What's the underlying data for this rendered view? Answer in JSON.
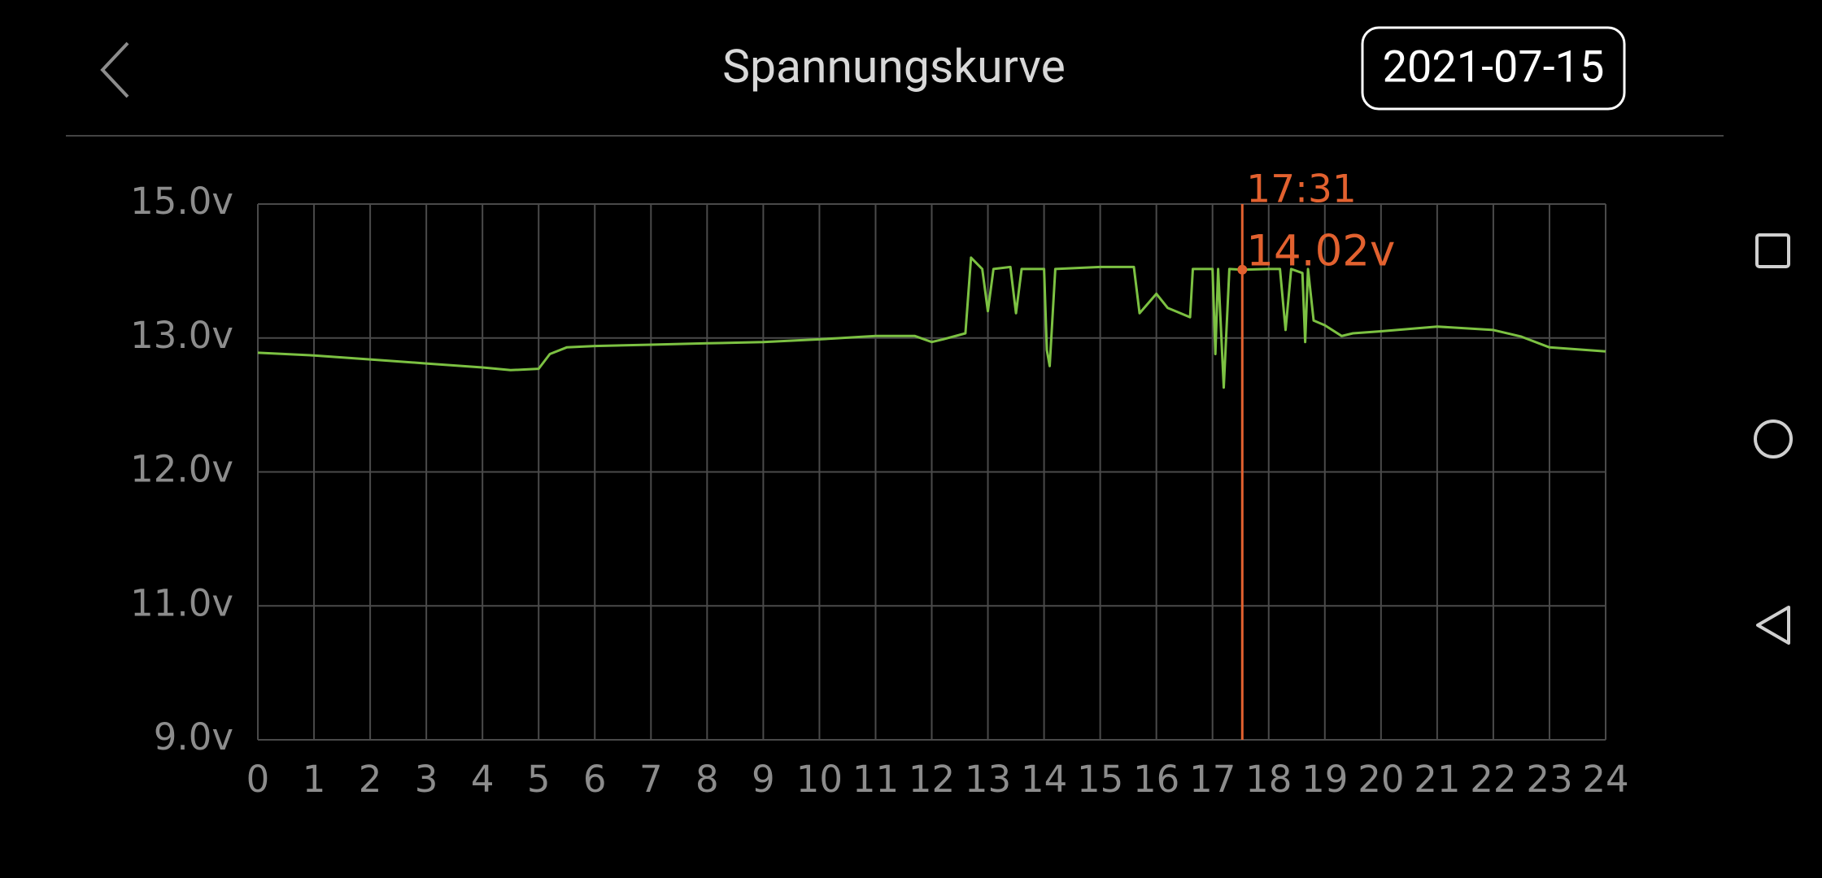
{
  "header": {
    "title": "Spannungskurve",
    "date": "2021-07-15"
  },
  "chart_data": {
    "type": "line",
    "x": [
      0,
      1,
      2,
      3,
      4,
      4.5,
      5,
      5.2,
      5.5,
      6,
      7,
      8,
      9,
      10,
      11,
      11.7,
      12,
      12.2,
      12.6,
      12.7,
      12.9,
      13,
      13.1,
      13.4,
      13.5,
      13.6,
      14,
      14.05,
      14.1,
      14.2,
      15,
      15.6,
      15.7,
      16,
      16.2,
      16.6,
      16.65,
      17,
      17.05,
      17.1,
      17.2,
      17.3,
      17.53,
      18,
      18.2,
      18.3,
      18.4,
      18.6,
      18.65,
      18.7,
      18.8,
      19,
      19.3,
      19.5,
      20,
      21,
      22,
      22.5,
      23,
      24
    ],
    "series": [
      {
        "color": "#7cc142",
        "values": [
          12.89,
          12.87,
          12.84,
          12.81,
          12.78,
          12.76,
          12.77,
          12.88,
          12.93,
          12.94,
          12.95,
          12.96,
          12.97,
          12.99,
          13.03,
          13.03,
          12.97,
          12.99,
          13.07,
          14.2,
          14.03,
          13.4,
          14.03,
          14.06,
          13.37,
          14.03,
          14.03,
          12.91,
          12.79,
          14.03,
          14.06,
          14.06,
          13.37,
          13.66,
          13.45,
          13.31,
          14.03,
          14.03,
          12.88,
          14.03,
          12.63,
          14.03,
          14.02,
          14.03,
          14.03,
          13.12,
          14.03,
          13.97,
          12.97,
          14.03,
          13.26,
          13.19,
          13.03,
          13.07,
          13.1,
          13.17,
          13.12,
          13.02,
          12.93,
          12.9
        ]
      }
    ],
    "xlim": [
      0,
      24
    ],
    "xticks": [
      0,
      1,
      2,
      3,
      4,
      5,
      6,
      7,
      8,
      9,
      10,
      11,
      12,
      13,
      14,
      15,
      16,
      17,
      18,
      19,
      20,
      21,
      22,
      23,
      24
    ],
    "ylim": [
      9,
      15
    ],
    "yticks": [
      {
        "value": 9,
        "label": "9.0v"
      },
      {
        "value": 11,
        "label": "11.0v"
      },
      {
        "value": 12,
        "label": "12.0v"
      },
      {
        "value": 13,
        "label": "13.0v"
      },
      {
        "value": 15,
        "label": "15.0v"
      }
    ],
    "grid": true,
    "cursor": {
      "label": "17:31",
      "x": 17.53,
      "value": 14.02,
      "value_label": "14.02v",
      "color": "#e2612f"
    }
  }
}
